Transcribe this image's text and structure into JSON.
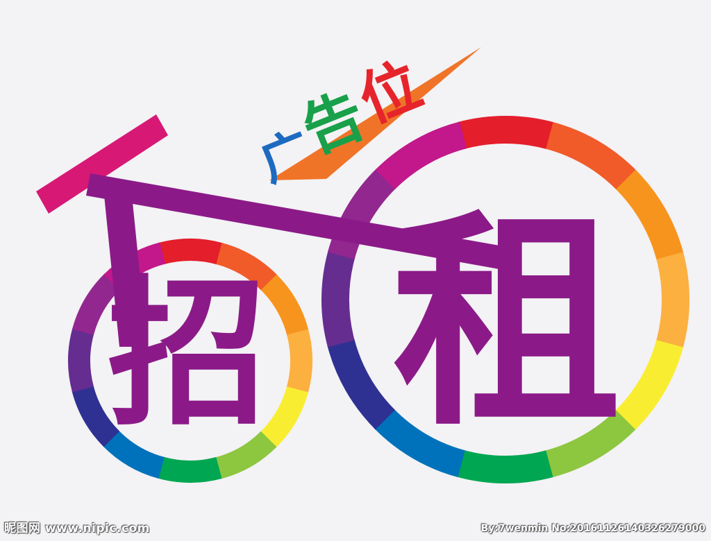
{
  "poster": {
    "char_small_wheel": "招",
    "char_large_wheel": "租",
    "tagline": "广告位",
    "tagline_colors": [
      "#1d6bc0",
      "#18a04a",
      "#e6242b"
    ],
    "char_color": "#8b1a88",
    "frame_color": "#8b1a88",
    "seat_color": "#d71875",
    "spoiler_color": "#f07428",
    "wheel_colors": [
      "#e41e2b",
      "#f15a29",
      "#f7941d",
      "#fbb040",
      "#f9ed32",
      "#8dc63f",
      "#00a651",
      "#0072bc",
      "#2e3192",
      "#662d91",
      "#92278f",
      "#c2188b"
    ]
  },
  "watermark": {
    "left": "昵图网 www.nipic.com",
    "right": "By:7wenmin No:20161126140326279000"
  }
}
